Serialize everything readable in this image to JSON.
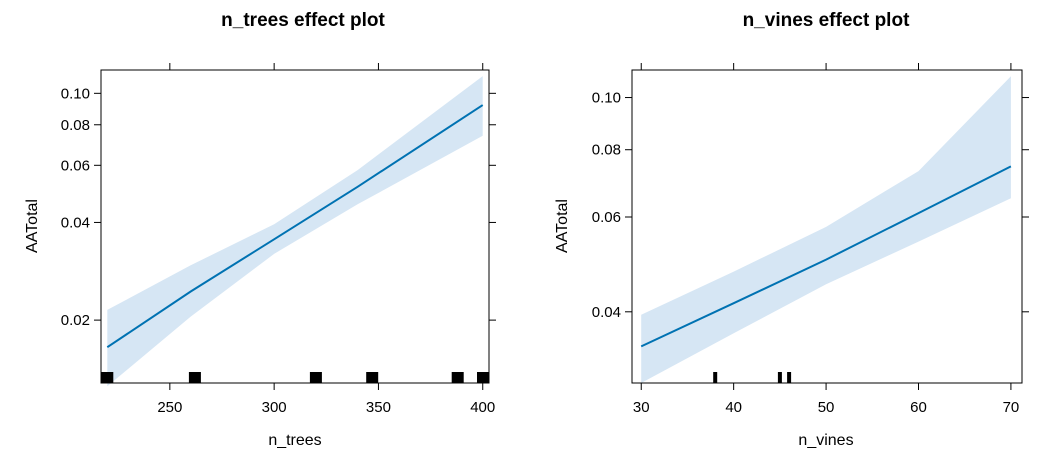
{
  "chart_data": [
    {
      "type": "line",
      "title": "n_trees effect plot",
      "xlabel": "n_trees",
      "ylabel": "AATotal",
      "y_scale": "log",
      "xlim": [
        217,
        403
      ],
      "ylim": [
        0.0128,
        0.118
      ],
      "x_ticks": [
        250,
        300,
        350,
        400
      ],
      "x_tick_labels": [
        "250",
        "300",
        "350",
        "400"
      ],
      "y_ticks": [
        0.02,
        0.04,
        0.06,
        0.08,
        0.1
      ],
      "y_tick_labels": [
        "0.02",
        "0.04",
        "0.06",
        "0.08",
        "0.10"
      ],
      "line_color": "#0072B2",
      "band_color": "#D6E6F4",
      "series": [
        {
          "x": [
            220,
            260,
            300,
            340,
            400
          ],
          "y": [
            0.0165,
            0.0245,
            0.0355,
            0.0515,
            0.092
          ],
          "lower": [
            0.0125,
            0.0205,
            0.032,
            0.0455,
            0.074
          ],
          "upper": [
            0.0215,
            0.0295,
            0.0395,
            0.058,
            0.113
          ]
        }
      ],
      "rug": [
        220,
        262,
        320,
        347,
        388,
        402
      ]
    },
    {
      "type": "line",
      "title": "n_vines effect plot",
      "xlabel": "n_vines",
      "ylabel": "AATotal",
      "y_scale": "log",
      "xlim": [
        29,
        71.2
      ],
      "ylim": [
        0.0295,
        0.1125
      ],
      "x_ticks": [
        30,
        40,
        50,
        60,
        70
      ],
      "x_tick_labels": [
        "30",
        "40",
        "50",
        "60",
        "70"
      ],
      "y_ticks": [
        0.04,
        0.06,
        0.08,
        0.1
      ],
      "y_tick_labels": [
        "0.04",
        "0.06",
        "0.08",
        "0.10"
      ],
      "line_color": "#0072B2",
      "band_color": "#D6E6F4",
      "series": [
        {
          "x": [
            30,
            40,
            50,
            60,
            70
          ],
          "y": [
            0.0345,
            0.0415,
            0.05,
            0.061,
            0.0745
          ],
          "lower": [
            0.0295,
            0.0365,
            0.045,
            0.054,
            0.065
          ],
          "upper": [
            0.0395,
            0.0475,
            0.0575,
            0.073,
            0.1095
          ]
        }
      ],
      "rug": [
        38,
        45,
        46
      ]
    }
  ]
}
